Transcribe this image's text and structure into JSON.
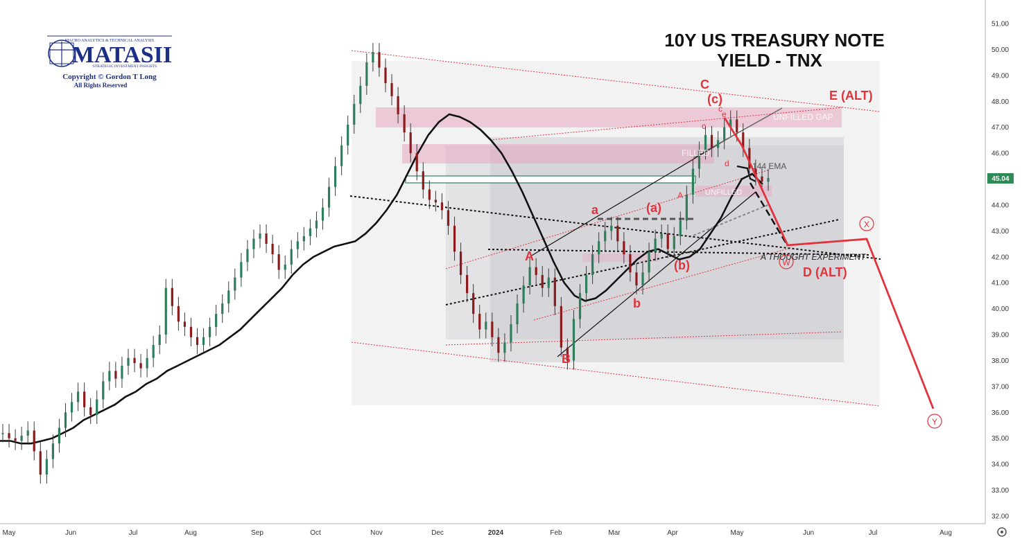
{
  "logo": {
    "tagline": "MACRO ANALYTICS & TECHNICAL ANALYSIS",
    "name": "MATASII",
    "subtitle": "STRATEGIC INVESTMENT INSIGHTS",
    "copyright": "Copyright © Gordon T Long",
    "rights": "All Rights Reserved"
  },
  "price_badge": "45.04",
  "annotations": {
    "ema": "144 EMA",
    "thought": "A THOUGHT EXPERIMENT",
    "unfilled_gap": "UNFILLED GAP",
    "filled": "FILLED",
    "unfilled": "UNFILLED",
    "wave_C": "C",
    "wave_c_paren": "(c)",
    "wave_c_small": "c",
    "wave_E_alt": "E (ALT)",
    "wave_A": "A",
    "wave_a": "a",
    "wave_a_paren": "(a)",
    "wave_b_paren": "(b)",
    "wave_b": "b",
    "wave_B": "B",
    "wave_D_alt": "D (ALT)",
    "wave_W": "W",
    "wave_X": "X",
    "wave_Y": "Y",
    "wave_e_small": "e",
    "wave_d_small": "d"
  },
  "chart_data": {
    "type": "line",
    "title": "10Y US TREASURY NOTE YIELD - TNX",
    "x_ticks": [
      "May",
      "Jun",
      "Jul",
      "Aug",
      "Sep",
      "Oct",
      "Nov",
      "Dec",
      "2024",
      "Feb",
      "Mar",
      "Apr",
      "May",
      "Jun",
      "Jul",
      "Aug"
    ],
    "y_ticks": [
      "32.00",
      "33.00",
      "34.00",
      "35.00",
      "36.00",
      "37.00",
      "38.00",
      "39.00",
      "40.00",
      "41.00",
      "42.00",
      "43.00",
      "44.00",
      "45.00",
      "46.00",
      "47.00",
      "48.00",
      "49.00",
      "50.00",
      "51.00"
    ],
    "ylim": [
      32,
      51
    ],
    "last_price": 45.04,
    "series": [
      {
        "values": [
          35.2,
          35.0,
          34.9,
          35.1,
          35.3,
          34.5,
          33.6,
          34.2,
          34.8,
          35.4,
          36.0,
          36.4,
          36.8,
          36.2,
          35.9,
          36.5,
          37.2,
          37.6,
          37.3,
          37.8,
          38.1,
          37.9,
          37.7,
          38.1,
          38.6,
          39.0,
          40.8,
          40.1,
          39.5,
          39.3,
          38.9,
          38.6,
          38.9,
          39.3,
          39.8,
          40.2,
          40.7,
          41.2,
          41.8,
          42.3,
          42.7,
          42.9,
          42.5,
          42.1,
          41.5,
          41.7,
          42.3,
          42.6,
          42.8,
          43.1,
          43.4,
          43.9,
          44.7,
          45.5,
          46.3,
          47.1,
          47.9,
          48.6,
          49.5,
          49.9,
          49.3,
          48.7,
          48.2,
          47.5,
          46.8,
          46.0,
          45.3,
          44.6,
          44.2,
          44.1,
          43.8,
          43.2,
          42.2,
          41.3,
          40.6,
          39.8,
          39.2,
          39.5,
          38.9,
          38.3,
          38.7,
          39.4,
          40.2,
          40.9,
          41.6,
          41.3,
          40.8,
          41.2,
          40.1,
          38.5,
          38.0,
          39.6,
          40.6,
          41.3,
          42.1,
          42.6,
          43.0,
          43.2,
          42.6,
          42.1,
          41.4,
          40.9,
          41.4,
          42.2,
          42.7,
          42.9,
          42.3,
          42.8,
          43.4,
          44.4,
          45.4,
          46.1,
          46.7,
          46.2,
          46.5,
          47.0,
          47.3,
          46.8,
          46.2,
          45.4,
          45.1,
          44.9,
          45.04
        ]
      },
      {
        "name": "144 EMA",
        "values": [
          34.9,
          34.9,
          34.8,
          34.8,
          34.9,
          35.0,
          35.2,
          35.4,
          35.7,
          35.9,
          36.1,
          36.3,
          36.6,
          36.8,
          37.1,
          37.3,
          37.6,
          37.8,
          38.0,
          38.2,
          38.4,
          38.6,
          38.9,
          39.2,
          39.6,
          40.0,
          40.4,
          40.8,
          41.3,
          41.7,
          42.0,
          42.2,
          42.4,
          42.5,
          42.6,
          42.9,
          43.3,
          43.8,
          44.4,
          45.2,
          46.0,
          46.7,
          47.2,
          47.5,
          47.4,
          47.2,
          46.9,
          46.5,
          46.0,
          45.3,
          44.5,
          43.6,
          42.7,
          41.8,
          41.0,
          40.5,
          40.3,
          40.4,
          40.7,
          41.1,
          41.5,
          41.9,
          42.2,
          42.3,
          42.1,
          41.9,
          42.0,
          42.3,
          42.9,
          43.5,
          44.3,
          45.0,
          45.2,
          44.8
        ]
      }
    ]
  }
}
